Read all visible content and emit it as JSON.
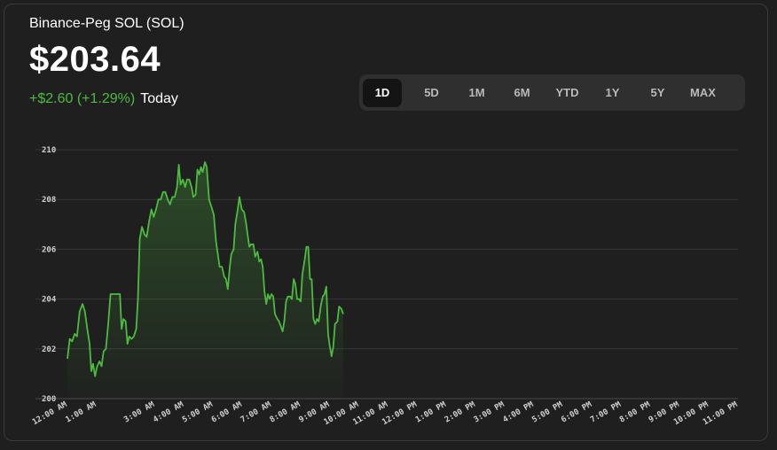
{
  "header": {
    "asset_name": "Binance-Peg SOL (SOL)",
    "price": "$203.64",
    "change": "+$2.60 (+1.29%)",
    "period": "Today"
  },
  "range_selector": {
    "options": [
      "1D",
      "5D",
      "1M",
      "6M",
      "YTD",
      "1Y",
      "5Y",
      "MAX"
    ],
    "selected": "1D"
  },
  "colors": {
    "accent_green": "#4cbb3f",
    "background": "#1f1f1f",
    "grid": "#3a3a3a"
  },
  "chart_data": {
    "type": "area",
    "title": "",
    "xlabel": "",
    "ylabel": "",
    "ylim": [
      200,
      210
    ],
    "xlim": [
      0,
      23
    ],
    "grid": true,
    "y_ticks": [
      "200",
      "202",
      "204",
      "206",
      "208",
      "210"
    ],
    "x_ticks": [
      "12:00 AM",
      "1:00 AM",
      "3:00 AM",
      "4:00 AM",
      "5:00 AM",
      "6:00 AM",
      "7:00 AM",
      "8:00 AM",
      "9:00 AM",
      "10:00 AM",
      "11:00 AM",
      "12:00 PM",
      "1:00 PM",
      "2:00 PM",
      "3:00 PM",
      "4:00 PM",
      "5:00 PM",
      "6:00 PM",
      "7:00 PM",
      "8:00 PM",
      "9:00 PM",
      "10:00 PM",
      "11:00 PM"
    ],
    "series": [
      {
        "color": "#4cbb3f",
        "points": [
          [
            0.0,
            201.6
          ],
          [
            0.08,
            202.4
          ],
          [
            0.16,
            202.3
          ],
          [
            0.25,
            202.6
          ],
          [
            0.33,
            202.5
          ],
          [
            0.42,
            203.5
          ],
          [
            0.52,
            203.8
          ],
          [
            0.6,
            203.5
          ],
          [
            0.68,
            202.8
          ],
          [
            0.76,
            202.2
          ],
          [
            0.82,
            201.1
          ],
          [
            0.88,
            201.4
          ],
          [
            0.95,
            200.9
          ],
          [
            1.02,
            201.3
          ],
          [
            1.1,
            201.5
          ],
          [
            1.17,
            201.3
          ],
          [
            1.24,
            201.9
          ],
          [
            1.32,
            202.0
          ],
          [
            1.4,
            203.0
          ],
          [
            1.48,
            204.2
          ],
          [
            1.56,
            204.2
          ],
          [
            1.64,
            204.2
          ],
          [
            1.72,
            204.2
          ],
          [
            1.8,
            204.2
          ],
          [
            1.86,
            202.8
          ],
          [
            1.92,
            203.2
          ],
          [
            2.0,
            203.1
          ],
          [
            2.06,
            202.2
          ],
          [
            2.12,
            202.5
          ],
          [
            2.2,
            202.4
          ],
          [
            2.28,
            202.5
          ],
          [
            2.36,
            202.8
          ],
          [
            2.42,
            204.0
          ],
          [
            2.48,
            206.4
          ],
          [
            2.56,
            206.9
          ],
          [
            2.64,
            206.6
          ],
          [
            2.72,
            206.5
          ],
          [
            2.8,
            207.1
          ],
          [
            2.88,
            207.6
          ],
          [
            2.96,
            207.3
          ],
          [
            3.04,
            207.6
          ],
          [
            3.12,
            208.0
          ],
          [
            3.2,
            208.0
          ],
          [
            3.28,
            208.3
          ],
          [
            3.36,
            208.3
          ],
          [
            3.44,
            208.0
          ],
          [
            3.52,
            207.8
          ],
          [
            3.6,
            208.1
          ],
          [
            3.68,
            208.1
          ],
          [
            3.76,
            208.5
          ],
          [
            3.82,
            209.4
          ],
          [
            3.88,
            208.6
          ],
          [
            3.96,
            208.8
          ],
          [
            4.04,
            208.5
          ],
          [
            4.1,
            208.8
          ],
          [
            4.18,
            208.8
          ],
          [
            4.26,
            208.5
          ],
          [
            4.32,
            208.1
          ],
          [
            4.4,
            208.2
          ],
          [
            4.46,
            209.2
          ],
          [
            4.52,
            209.0
          ],
          [
            4.58,
            209.3
          ],
          [
            4.64,
            209.1
          ],
          [
            4.72,
            209.5
          ],
          [
            4.78,
            209.3
          ],
          [
            4.86,
            208.0
          ],
          [
            4.94,
            207.7
          ],
          [
            5.02,
            207.4
          ],
          [
            5.1,
            206.3
          ],
          [
            5.16,
            205.8
          ],
          [
            5.22,
            205.3
          ],
          [
            5.3,
            205.3
          ],
          [
            5.38,
            204.9
          ],
          [
            5.44,
            204.8
          ],
          [
            5.5,
            204.4
          ],
          [
            5.56,
            205.2
          ],
          [
            5.62,
            205.8
          ],
          [
            5.7,
            206.0
          ],
          [
            5.76,
            207.0
          ],
          [
            5.84,
            207.6
          ],
          [
            5.9,
            208.1
          ],
          [
            5.98,
            207.6
          ],
          [
            6.06,
            207.5
          ],
          [
            6.12,
            207.1
          ],
          [
            6.18,
            206.6
          ],
          [
            6.24,
            206.1
          ],
          [
            6.3,
            206.2
          ],
          [
            6.38,
            206.2
          ],
          [
            6.44,
            205.7
          ],
          [
            6.52,
            205.9
          ],
          [
            6.58,
            205.5
          ],
          [
            6.64,
            205.6
          ],
          [
            6.7,
            205.3
          ],
          [
            6.76,
            204.3
          ],
          [
            6.82,
            203.8
          ],
          [
            6.88,
            204.2
          ],
          [
            6.94,
            204.0
          ],
          [
            7.0,
            204.2
          ],
          [
            7.06,
            204.1
          ],
          [
            7.12,
            203.4
          ],
          [
            7.2,
            203.2
          ],
          [
            7.26,
            203.1
          ],
          [
            7.32,
            202.9
          ],
          [
            7.38,
            202.7
          ],
          [
            7.44,
            203.1
          ],
          [
            7.5,
            203.9
          ],
          [
            7.56,
            204.1
          ],
          [
            7.64,
            204.1
          ],
          [
            7.7,
            204.0
          ],
          [
            7.76,
            204.8
          ],
          [
            7.82,
            204.6
          ],
          [
            7.88,
            204.0
          ],
          [
            7.94,
            204.0
          ],
          [
            8.0,
            203.9
          ],
          [
            8.06,
            205.0
          ],
          [
            8.14,
            205.6
          ],
          [
            8.2,
            206.1
          ],
          [
            8.26,
            206.1
          ],
          [
            8.32,
            204.8
          ],
          [
            8.38,
            204.8
          ],
          [
            8.44,
            203.2
          ],
          [
            8.5,
            203.0
          ],
          [
            8.56,
            203.2
          ],
          [
            8.62,
            203.1
          ],
          [
            8.7,
            203.8
          ],
          [
            8.76,
            204.1
          ],
          [
            8.82,
            204.2
          ],
          [
            8.88,
            204.5
          ],
          [
            8.94,
            202.6
          ],
          [
            9.0,
            202.1
          ],
          [
            9.06,
            201.7
          ],
          [
            9.12,
            202.1
          ],
          [
            9.18,
            203.0
          ],
          [
            9.26,
            203.1
          ],
          [
            9.32,
            203.7
          ],
          [
            9.4,
            203.6
          ],
          [
            9.46,
            203.4
          ]
        ]
      }
    ]
  }
}
